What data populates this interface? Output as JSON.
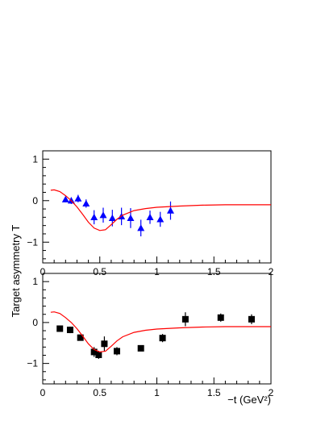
{
  "figure": {
    "ylabel": "Target asymmetry  T",
    "xlabel": "−t  (GeV²)"
  },
  "chart_data": [
    {
      "type": "scatter",
      "xlim": [
        0,
        2
      ],
      "ylim": [
        -1.5,
        1.2
      ],
      "xticks": [
        0,
        0.5,
        1,
        1.5,
        2
      ],
      "xtick_labels": [
        "0",
        "0.5",
        "1",
        "1.5",
        "2"
      ],
      "yticks": [
        -1,
        0,
        1
      ],
      "ytick_labels": [
        "−1",
        "0",
        "1"
      ],
      "grid": false,
      "series": [
        {
          "kind": "points",
          "marker": "triangle",
          "color": "#0000ff",
          "points": [
            {
              "x": 0.2,
              "y": 0.03,
              "err": 0.07
            },
            {
              "x": 0.25,
              "y": 0.0,
              "err": 0.08
            },
            {
              "x": 0.31,
              "y": 0.05,
              "err": 0.09
            },
            {
              "x": 0.38,
              "y": -0.07,
              "err": 0.1
            },
            {
              "x": 0.45,
              "y": -0.4,
              "err": 0.17
            },
            {
              "x": 0.53,
              "y": -0.35,
              "err": 0.18
            },
            {
              "x": 0.61,
              "y": -0.42,
              "err": 0.2
            },
            {
              "x": 0.69,
              "y": -0.38,
              "err": 0.21
            },
            {
              "x": 0.77,
              "y": -0.42,
              "err": 0.24
            },
            {
              "x": 0.86,
              "y": -0.66,
              "err": 0.2
            },
            {
              "x": 0.94,
              "y": -0.4,
              "err": 0.16
            },
            {
              "x": 1.03,
              "y": -0.45,
              "err": 0.18
            },
            {
              "x": 1.12,
              "y": -0.24,
              "err": 0.22
            }
          ]
        },
        {
          "kind": "line",
          "color": "#ff0000",
          "x": [
            0.07,
            0.1,
            0.15,
            0.2,
            0.25,
            0.3,
            0.35,
            0.4,
            0.45,
            0.5,
            0.55,
            0.6,
            0.65,
            0.7,
            0.8,
            0.9,
            1.0,
            1.2,
            1.4,
            1.6,
            1.8,
            2.0
          ],
          "y": [
            0.25,
            0.26,
            0.22,
            0.12,
            0.0,
            -0.15,
            -0.33,
            -0.52,
            -0.66,
            -0.72,
            -0.7,
            -0.58,
            -0.45,
            -0.35,
            -0.24,
            -0.19,
            -0.16,
            -0.13,
            -0.11,
            -0.1,
            -0.1,
            -0.1
          ]
        }
      ]
    },
    {
      "type": "scatter",
      "xlim": [
        0,
        2
      ],
      "ylim": [
        -1.5,
        1.2
      ],
      "xticks": [
        0,
        0.5,
        1,
        1.5,
        2
      ],
      "xtick_labels": [
        "0",
        "0.5",
        "1",
        "1.5",
        "2"
      ],
      "yticks": [
        -1,
        0,
        1
      ],
      "ytick_labels": [
        "−1",
        "0",
        "1"
      ],
      "grid": false,
      "series": [
        {
          "kind": "points",
          "marker": "square",
          "color": "#000000",
          "points": [
            {
              "x": 0.15,
              "y": -0.15,
              "err": 0.07
            },
            {
              "x": 0.24,
              "y": -0.18,
              "err": 0.08
            },
            {
              "x": 0.33,
              "y": -0.37,
              "err": 0.07
            },
            {
              "x": 0.45,
              "y": -0.72,
              "err": 0.12
            },
            {
              "x": 0.49,
              "y": -0.79,
              "err": 0.1
            },
            {
              "x": 0.54,
              "y": -0.52,
              "err": 0.18
            },
            {
              "x": 0.65,
              "y": -0.7,
              "err": 0.1
            },
            {
              "x": 0.86,
              "y": -0.63,
              "err": 0.05
            },
            {
              "x": 1.05,
              "y": -0.38,
              "err": 0.1
            },
            {
              "x": 1.25,
              "y": 0.08,
              "err": 0.17
            },
            {
              "x": 1.56,
              "y": 0.12,
              "err": 0.1
            },
            {
              "x": 1.83,
              "y": 0.08,
              "err": 0.12
            }
          ]
        },
        {
          "kind": "line",
          "color": "#ff0000",
          "x": [
            0.07,
            0.1,
            0.15,
            0.2,
            0.25,
            0.3,
            0.35,
            0.4,
            0.45,
            0.5,
            0.55,
            0.6,
            0.65,
            0.7,
            0.8,
            0.9,
            1.0,
            1.2,
            1.4,
            1.6,
            1.8,
            2.0
          ],
          "y": [
            0.25,
            0.26,
            0.22,
            0.12,
            0.0,
            -0.15,
            -0.33,
            -0.52,
            -0.66,
            -0.72,
            -0.7,
            -0.58,
            -0.45,
            -0.35,
            -0.24,
            -0.19,
            -0.16,
            -0.13,
            -0.11,
            -0.1,
            -0.1,
            -0.1
          ]
        }
      ]
    }
  ]
}
